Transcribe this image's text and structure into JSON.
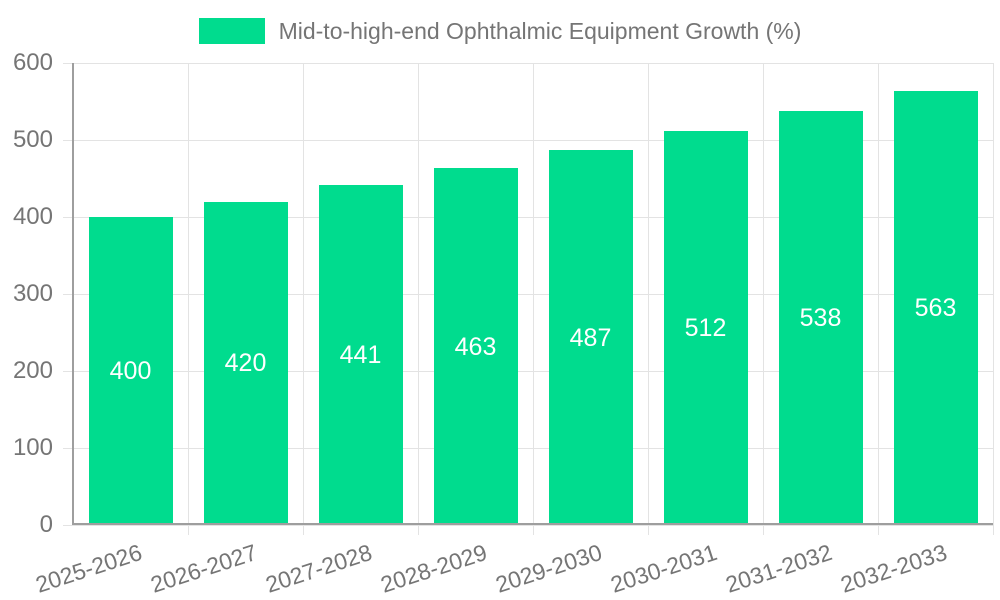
{
  "chart_data": {
    "type": "bar",
    "title": "Mid-to-high-end Ophthalmic Equipment Growth (%)",
    "categories": [
      "2025-2026",
      "2026-2027",
      "2027-2028",
      "2028-2029",
      "2029-2030",
      "2030-2031",
      "2031-2032",
      "2032-2033"
    ],
    "values": [
      400,
      420,
      441,
      463,
      487,
      512,
      538,
      563
    ],
    "xlabel": "",
    "ylabel": "",
    "ylim": [
      0,
      600
    ],
    "yticks": [
      0,
      100,
      200,
      300,
      400,
      500,
      600
    ],
    "grid": true,
    "legend_position": "top",
    "bar_labels_inside": true,
    "colors": {
      "bar": "#00dc8e",
      "bar_label": "#ffffff",
      "axis_text": "#757575",
      "axis_line": "#9e9e9e",
      "gridline": "#e3e3e3",
      "background": "#ffffff"
    }
  }
}
